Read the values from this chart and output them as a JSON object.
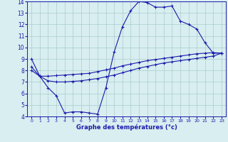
{
  "line1_x": [
    0,
    1,
    2,
    3,
    4,
    5,
    6,
    7,
    8,
    9,
    10,
    11,
    12,
    13,
    14,
    15,
    16,
    17,
    18,
    19,
    20,
    21,
    22,
    23
  ],
  "line1_y": [
    9.0,
    7.5,
    6.5,
    5.8,
    4.3,
    4.4,
    4.4,
    4.3,
    4.2,
    6.5,
    9.6,
    11.8,
    13.2,
    14.0,
    13.9,
    13.5,
    13.5,
    13.6,
    12.3,
    12.0,
    11.6,
    10.4,
    9.5,
    9.5
  ],
  "line2_x": [
    0,
    1,
    2,
    3,
    4,
    5,
    6,
    7,
    8,
    9,
    10,
    11,
    12,
    13,
    14,
    15,
    16,
    17,
    18,
    19,
    20,
    21,
    22,
    23
  ],
  "line2_y": [
    8.3,
    7.5,
    7.5,
    7.55,
    7.6,
    7.65,
    7.7,
    7.75,
    7.9,
    8.05,
    8.2,
    8.4,
    8.55,
    8.7,
    8.85,
    8.95,
    9.05,
    9.15,
    9.25,
    9.35,
    9.45,
    9.5,
    9.55,
    9.5
  ],
  "line3_x": [
    0,
    1,
    2,
    3,
    4,
    5,
    6,
    7,
    8,
    9,
    10,
    11,
    12,
    13,
    14,
    15,
    16,
    17,
    18,
    19,
    20,
    21,
    22,
    23
  ],
  "line3_y": [
    8.0,
    7.5,
    7.1,
    7.0,
    7.0,
    7.05,
    7.1,
    7.2,
    7.3,
    7.45,
    7.6,
    7.8,
    8.0,
    8.2,
    8.35,
    8.5,
    8.65,
    8.75,
    8.85,
    8.95,
    9.05,
    9.15,
    9.25,
    9.5
  ],
  "line_color": "#1a1aaa",
  "marker": "+",
  "markersize": 2.5,
  "linewidth": 0.8,
  "bg_color": "#d8eef0",
  "grid_color": "#aacccc",
  "xlabel": "Graphe des températures (°c)",
  "xlabel_color": "#1a1aaa",
  "tick_color": "#1a1aaa",
  "xlim": [
    -0.5,
    23.5
  ],
  "ylim": [
    4,
    14
  ],
  "yticks": [
    4,
    5,
    6,
    7,
    8,
    9,
    10,
    11,
    12,
    13,
    14
  ],
  "xticks": [
    0,
    1,
    2,
    3,
    4,
    5,
    6,
    7,
    8,
    9,
    10,
    11,
    12,
    13,
    14,
    15,
    16,
    17,
    18,
    19,
    20,
    21,
    22,
    23
  ]
}
